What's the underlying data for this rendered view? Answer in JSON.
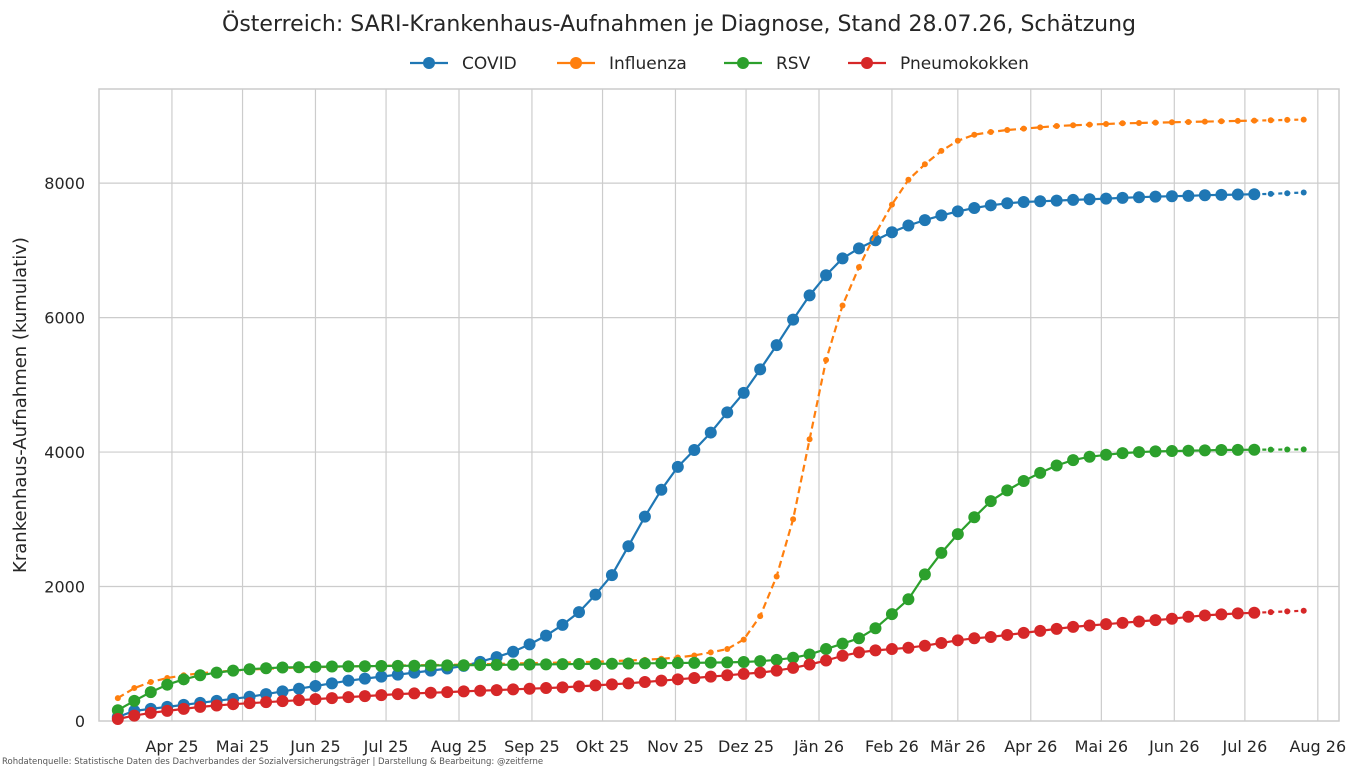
{
  "chart_data": {
    "type": "line",
    "title": "Österreich: SARI-Krankenhaus-Aufnahmen je Diagnose, Stand 28.07.26, Schätzung",
    "ylabel": "Krankenhaus-Aufnahmen (kumulativ)",
    "xlabel": "",
    "footnote": "Rohdatenquelle: Statistische Daten des Dachverbandes der Sozialversicherungsträger | Darstellung & Bearbeitung: @zeitferne",
    "legend_position": "top-center",
    "grid": true,
    "x_range": [
      "2025-03-01",
      "2026-08-10"
    ],
    "ylim": [
      0,
      9400
    ],
    "y_ticks": [
      0,
      2000,
      4000,
      6000,
      8000
    ],
    "y_tick_labels": [
      "0",
      "2000",
      "4000",
      "6000",
      "8000"
    ],
    "x_ticks": [
      "2025-04-01",
      "2025-05-01",
      "2025-06-01",
      "2025-07-01",
      "2025-08-01",
      "2025-09-01",
      "2025-10-01",
      "2025-11-01",
      "2025-12-01",
      "2026-01-01",
      "2026-02-01",
      "2026-03-01",
      "2026-04-01",
      "2026-05-01",
      "2026-06-01",
      "2026-07-01",
      "2026-08-01"
    ],
    "x_tick_labels": [
      "Apr 25",
      "Mai 25",
      "Jun 25",
      "Jul 25",
      "Aug 25",
      "Sep 25",
      "Okt 25",
      "Nov 25",
      "Dez 25",
      "Jän 26",
      "Feb 26",
      "Mär 26",
      "Apr 26",
      "Mai 26",
      "Jun 26",
      "Jul 26",
      "Aug 26"
    ],
    "start_date": "2025-03-09",
    "step_days": 7,
    "series": [
      {
        "name": "COVID",
        "color": "#1f77b4",
        "marker": "large",
        "values": [
          60,
          150,
          180,
          210,
          240,
          270,
          300,
          330,
          360,
          400,
          440,
          480,
          520,
          560,
          600,
          630,
          660,
          690,
          720,
          750,
          780,
          820,
          880,
          950,
          1030,
          1140,
          1270,
          1430,
          1620,
          1880,
          2170,
          2600,
          3040,
          3440,
          3780,
          4030,
          4290,
          4590,
          4880,
          5230,
          5590,
          5970,
          6330,
          6630,
          6880,
          7030,
          7150,
          7270,
          7370,
          7450,
          7520,
          7580,
          7630,
          7670,
          7700,
          7720,
          7730,
          7740,
          7750,
          7760,
          7770,
          7780,
          7790,
          7800,
          7805,
          7810,
          7820,
          7825,
          7830,
          7835
        ],
        "estimate_values": [
          7840,
          7850,
          7860
        ]
      },
      {
        "name": "Influenza",
        "color": "#ff7f0e",
        "marker": "small",
        "values": [
          340,
          490,
          580,
          640,
          680,
          710,
          730,
          750,
          765,
          775,
          785,
          795,
          800,
          805,
          810,
          815,
          820,
          825,
          828,
          832,
          836,
          840,
          845,
          850,
          855,
          860,
          865,
          870,
          875,
          880,
          890,
          900,
          910,
          925,
          945,
          975,
          1020,
          1070,
          1210,
          1560,
          2150,
          3000,
          4190,
          5370,
          6180,
          6750,
          7250,
          7680,
          8050,
          8280,
          8480,
          8630,
          8720,
          8760,
          8790,
          8810,
          8830,
          8850,
          8860,
          8870,
          8880,
          8890,
          8895,
          8900,
          8905,
          8910,
          8915,
          8920,
          8925,
          8930
        ],
        "estimate_values": [
          8935,
          8940,
          8945
        ]
      },
      {
        "name": "RSV",
        "color": "#2ca02c",
        "marker": "large",
        "values": [
          160,
          300,
          430,
          540,
          620,
          680,
          720,
          750,
          770,
          785,
          795,
          800,
          805,
          810,
          812,
          815,
          818,
          820,
          822,
          825,
          828,
          830,
          832,
          835,
          838,
          840,
          842,
          845,
          848,
          850,
          852,
          855,
          858,
          860,
          862,
          865,
          868,
          872,
          878,
          890,
          910,
          940,
          990,
          1070,
          1150,
          1230,
          1380,
          1590,
          1810,
          2180,
          2500,
          2780,
          3030,
          3270,
          3430,
          3570,
          3690,
          3800,
          3880,
          3930,
          3960,
          3985,
          4000,
          4010,
          4015,
          4020,
          4025,
          4030,
          4032,
          4035
        ],
        "estimate_values": [
          4036,
          4038,
          4040
        ]
      },
      {
        "name": "Pneumokokken",
        "color": "#d62728",
        "marker": "large",
        "values": [
          30,
          80,
          120,
          150,
          180,
          210,
          230,
          250,
          265,
          280,
          295,
          310,
          325,
          340,
          355,
          370,
          385,
          400,
          410,
          420,
          430,
          440,
          450,
          460,
          470,
          480,
          490,
          500,
          515,
          530,
          545,
          560,
          580,
          600,
          620,
          640,
          660,
          680,
          700,
          720,
          750,
          790,
          840,
          900,
          970,
          1020,
          1050,
          1070,
          1090,
          1120,
          1160,
          1200,
          1230,
          1250,
          1280,
          1310,
          1340,
          1370,
          1400,
          1420,
          1440,
          1460,
          1480,
          1500,
          1520,
          1550,
          1570,
          1585,
          1600,
          1610
        ],
        "estimate_values": [
          1620,
          1630,
          1640
        ]
      }
    ]
  }
}
